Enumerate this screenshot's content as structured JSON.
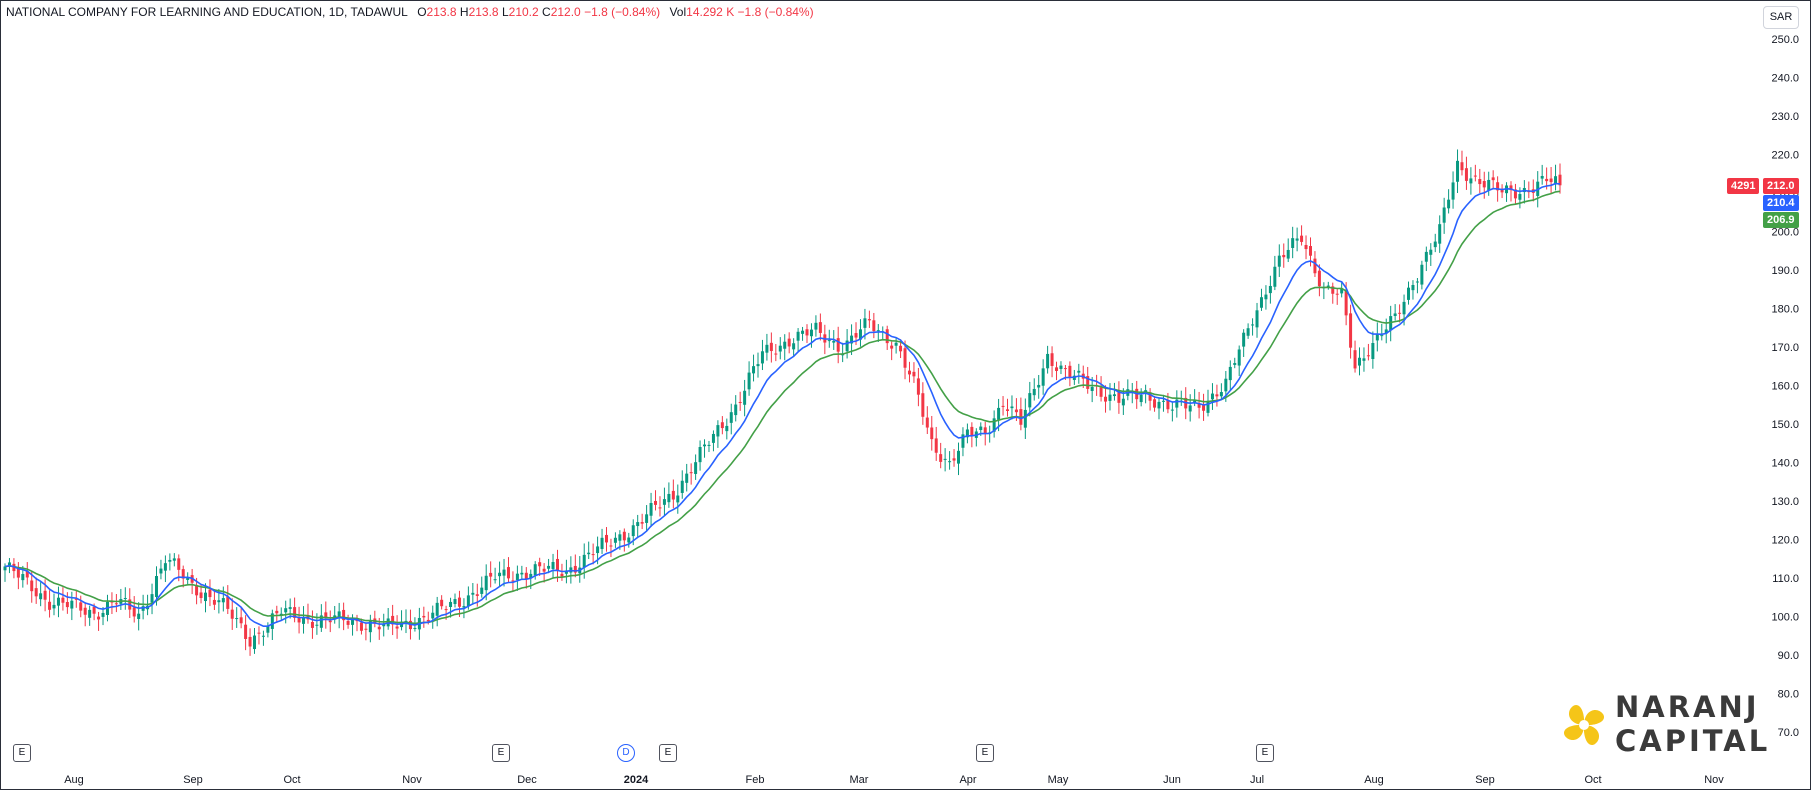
{
  "legend": {
    "symbol": "NATIONAL COMPANY FOR LEARNING AND EDUCATION, 1D, TADAWUL",
    "o_label": "O",
    "o_value": "213.8",
    "h_label": "H",
    "h_value": "213.8",
    "l_label": "L",
    "l_value": "210.2",
    "c_label": "C",
    "c_value": "212.0",
    "change": "−1.8 (−0.84%)",
    "vol_label": "Vol",
    "vol_value": "14.292 K",
    "vol_change": "−1.8 (−0.84%)"
  },
  "currency": "SAR",
  "tags": {
    "symbol_code": "4291",
    "last_price": "212.0",
    "ma_fast": "210.4",
    "ma_slow": "206.9"
  },
  "logo": {
    "line1": "NARANJ",
    "line2": "CAPITAL"
  },
  "events": [
    "E",
    "E",
    "D",
    "E",
    "E",
    "E"
  ],
  "colors": {
    "up": "#089981",
    "down": "#f23645",
    "ma_fast": "#2962ff",
    "ma_slow": "#43a047",
    "logo_yellow": "#f5c518",
    "text": "#131722"
  },
  "chart_data": {
    "type": "candlestick",
    "title": "NATIONAL COMPANY FOR LEARNING AND EDUCATION, 1D, TADAWUL",
    "ylabel": "SAR",
    "y_ticks": [
      70,
      80,
      90,
      100,
      110,
      120,
      130,
      140,
      150,
      160,
      170,
      180,
      190,
      200,
      210,
      220,
      230,
      240,
      250
    ],
    "x_ticks": [
      "Aug",
      "Sep",
      "Oct",
      "Nov",
      "Dec",
      "2024",
      "Feb",
      "Mar",
      "Apr",
      "May",
      "Jun",
      "Jul",
      "Aug",
      "Sep",
      "Oct",
      "Nov"
    ],
    "ylim": [
      65,
      255
    ],
    "grid": false,
    "price_anchors": [
      [
        0,
        113
      ],
      [
        10,
        104
      ],
      [
        20,
        101
      ],
      [
        25,
        104
      ],
      [
        30,
        100
      ],
      [
        36,
        115
      ],
      [
        42,
        108
      ],
      [
        48,
        104
      ],
      [
        55,
        94
      ],
      [
        62,
        101
      ],
      [
        70,
        99
      ],
      [
        78,
        99
      ],
      [
        86,
        97
      ],
      [
        95,
        100
      ],
      [
        102,
        104
      ],
      [
        110,
        110
      ],
      [
        118,
        112
      ],
      [
        126,
        112
      ],
      [
        134,
        118
      ],
      [
        142,
        124
      ],
      [
        150,
        132
      ],
      [
        158,
        145
      ],
      [
        164,
        155
      ],
      [
        170,
        168
      ],
      [
        176,
        172
      ],
      [
        182,
        174
      ],
      [
        188,
        170
      ],
      [
        194,
        176
      ],
      [
        200,
        171
      ],
      [
        204,
        160
      ],
      [
        208,
        145
      ],
      [
        212,
        140
      ],
      [
        216,
        147
      ],
      [
        220,
        148
      ],
      [
        224,
        156
      ],
      [
        228,
        150
      ],
      [
        234,
        168
      ],
      [
        238,
        163
      ],
      [
        244,
        160
      ],
      [
        250,
        156
      ],
      [
        256,
        158
      ],
      [
        262,
        154
      ],
      [
        268,
        155
      ],
      [
        274,
        160
      ],
      [
        280,
        178
      ],
      [
        286,
        192
      ],
      [
        291,
        199
      ],
      [
        296,
        185
      ],
      [
        300,
        183
      ],
      [
        303,
        165
      ],
      [
        306,
        170
      ],
      [
        312,
        177
      ],
      [
        318,
        192
      ],
      [
        322,
        200
      ],
      [
        326,
        217
      ],
      [
        330,
        214
      ],
      [
        336,
        210
      ],
      [
        341,
        211
      ],
      [
        346,
        213
      ],
      [
        349,
        212.0
      ]
    ],
    "series": [
      {
        "name": "Price",
        "values_ref": "price_anchors"
      },
      {
        "name": "MA fast",
        "last": 210.4
      },
      {
        "name": "MA slow",
        "last": 206.9
      }
    ]
  }
}
